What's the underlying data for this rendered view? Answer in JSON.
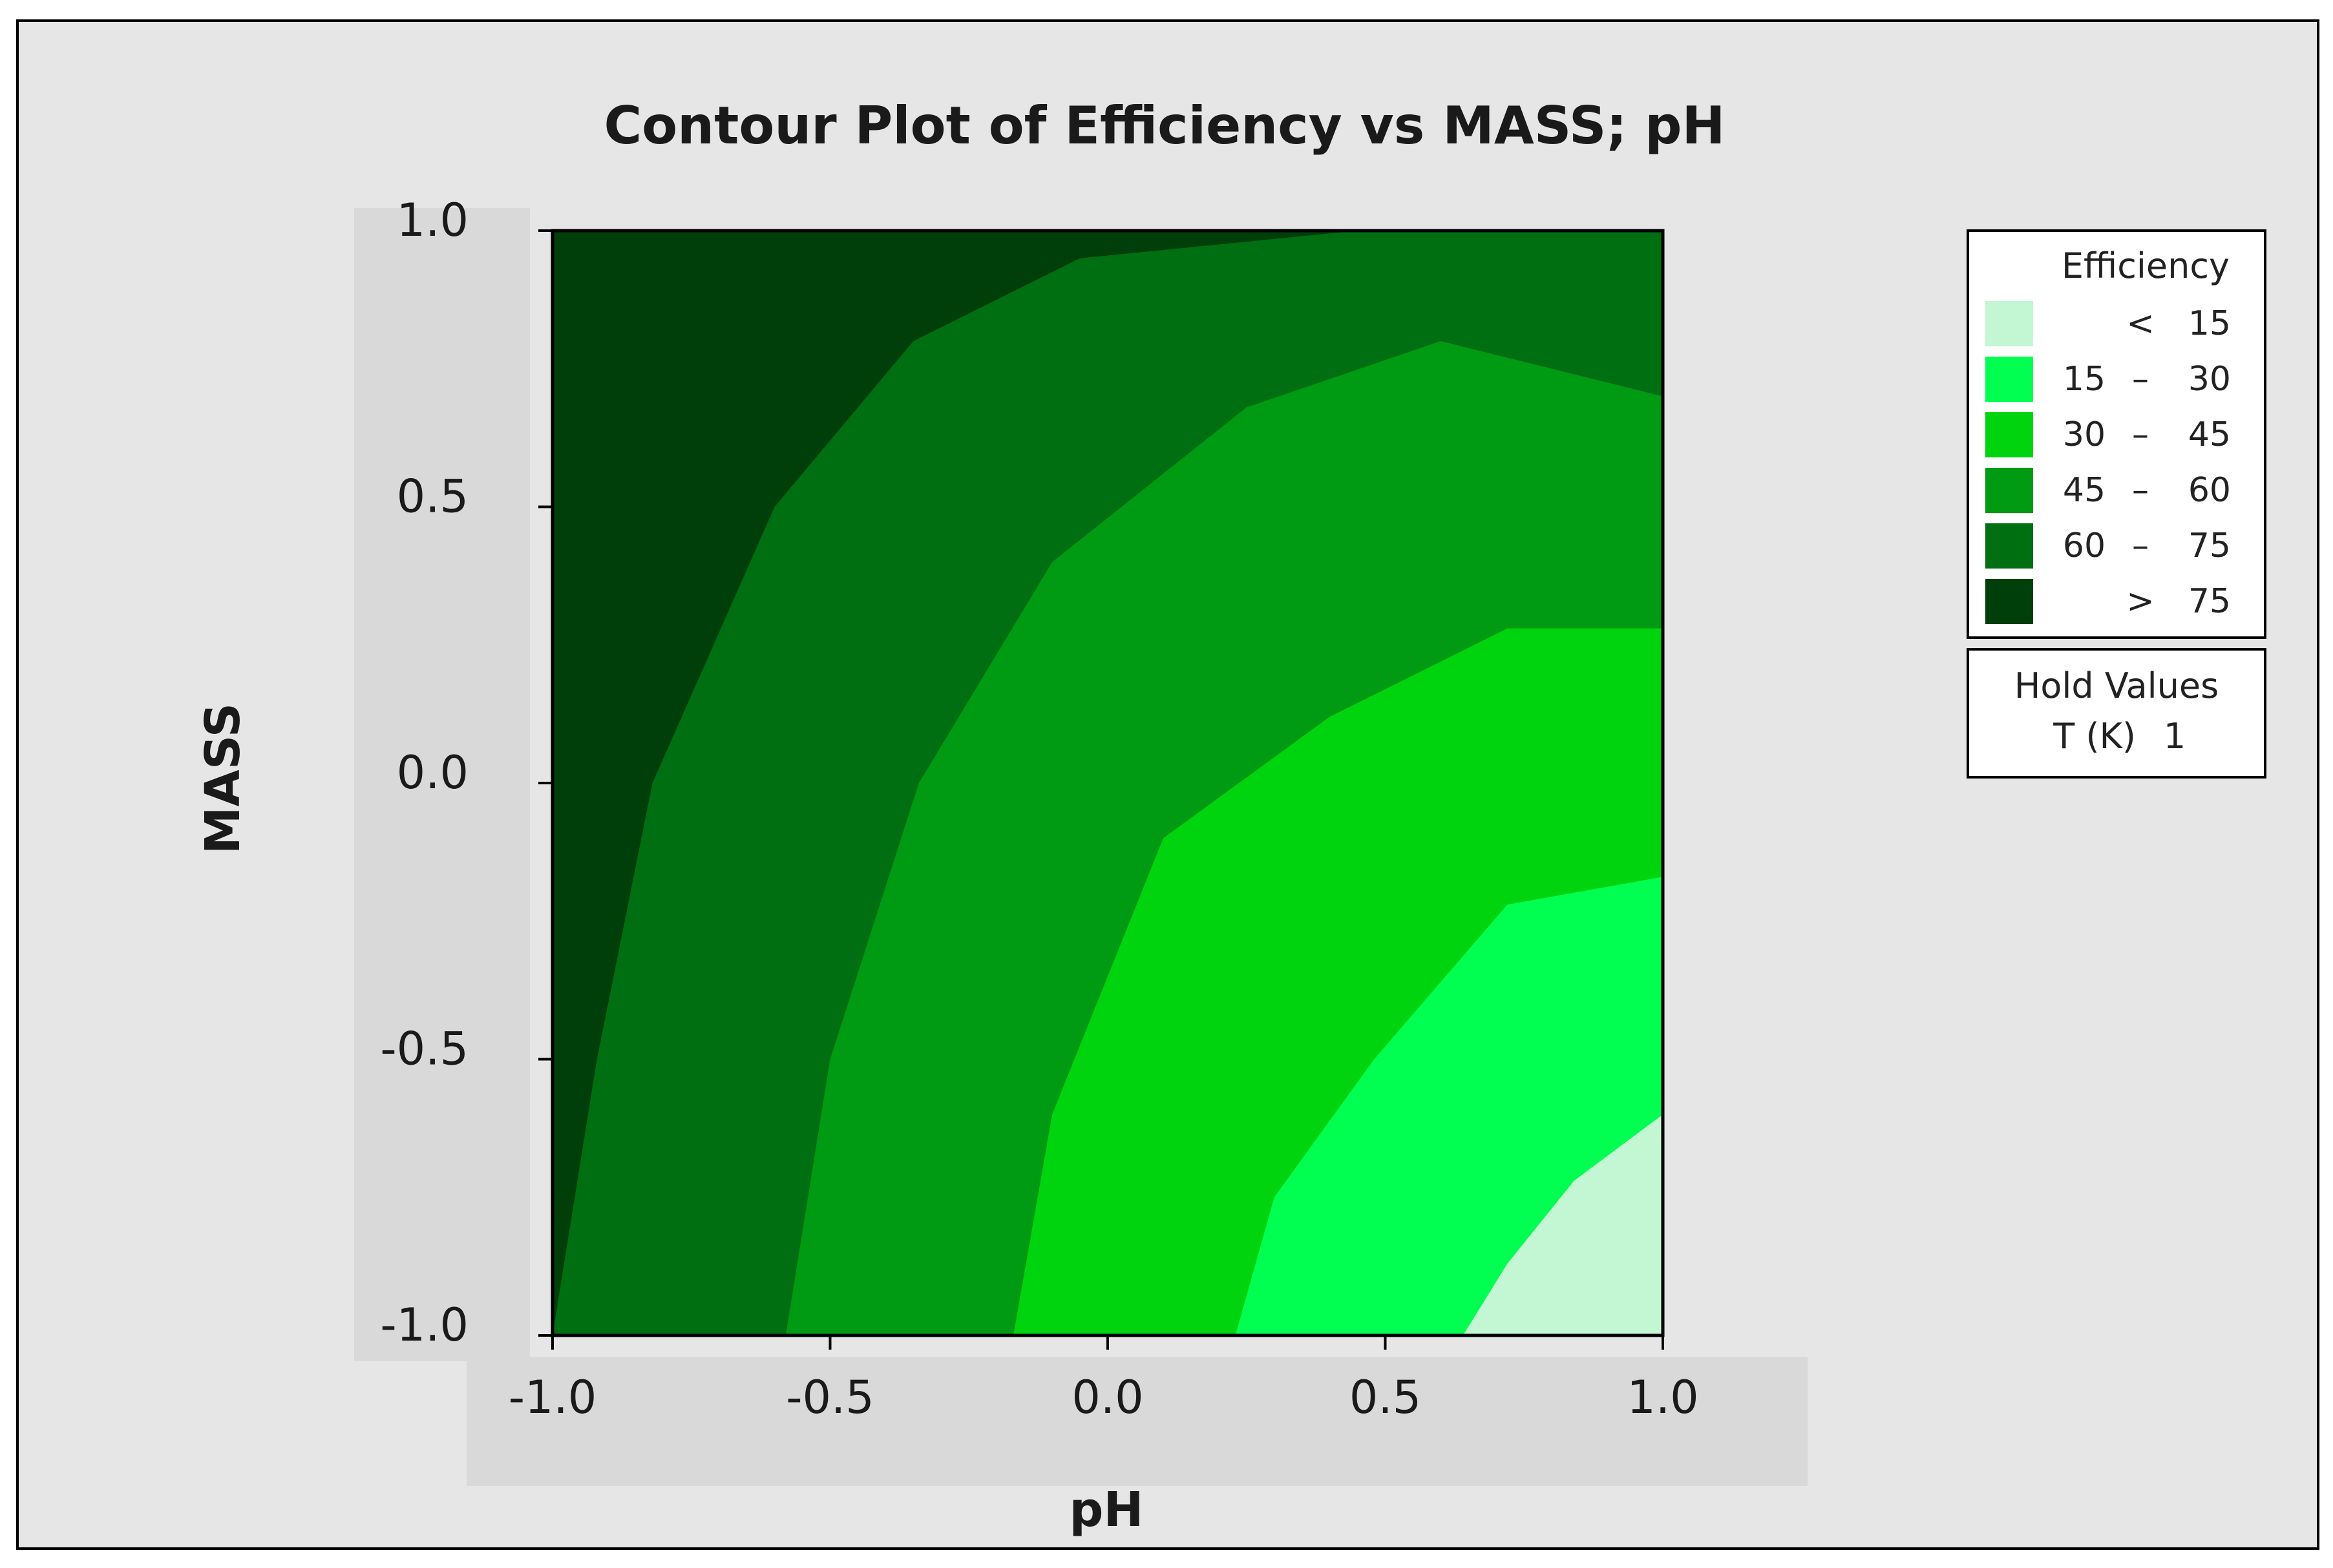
{
  "chart_data": {
    "type": "heatmap",
    "subtype": "filled-contour",
    "title": "Contour Plot of Efficiency vs MASS; pH",
    "xlabel": "pH",
    "ylabel": "MASS",
    "xlim": [
      -1.0,
      1.0
    ],
    "ylim": [
      -1.0,
      1.0
    ],
    "xticks": [
      -1.0,
      -0.5,
      0.0,
      0.5,
      1.0
    ],
    "xtick_labels": [
      "-1.0",
      "-0.5",
      "0.0",
      "0.5",
      "1.0"
    ],
    "yticks": [
      -1.0,
      -0.5,
      0.0,
      0.5,
      1.0
    ],
    "ytick_labels": [
      "-1.0",
      "-0.5",
      "0.0",
      "0.5",
      "1.0"
    ],
    "grid": false,
    "legend": {
      "title": "Efficiency",
      "placement": "right",
      "entries": [
        {
          "lo": "",
          "sep": "<",
          "hi": "15",
          "color": "#c3f7d4"
        },
        {
          "lo": "15",
          "sep": "–",
          "hi": "30",
          "color": "#00ff50"
        },
        {
          "lo": "30",
          "sep": "–",
          "hi": "45",
          "color": "#00d40f"
        },
        {
          "lo": "45",
          "sep": "–",
          "hi": "60",
          "color": "#009a13"
        },
        {
          "lo": "60",
          "sep": "–",
          "hi": "75",
          "color": "#006f12"
        },
        {
          "lo": "",
          "sep": ">",
          "hi": "75",
          "color": "#003f0a"
        }
      ]
    },
    "hold_values": {
      "title": "Hold Values",
      "items": [
        {
          "name": "T (K)",
          "value": "1"
        }
      ]
    },
    "contour_levels": [
      15,
      30,
      45,
      60,
      75
    ],
    "contour_boundaries": [
      {
        "level": 75,
        "points": [
          [
            -1.0,
            -1.0
          ],
          [
            -0.92,
            -0.5
          ],
          [
            -0.82,
            0.0
          ],
          [
            -0.6,
            0.5
          ],
          [
            -0.35,
            0.8
          ],
          [
            -0.05,
            0.95
          ],
          [
            0.45,
            1.0
          ]
        ]
      },
      {
        "level": 60,
        "points": [
          [
            -0.58,
            -1.0
          ],
          [
            -0.5,
            -0.5
          ],
          [
            -0.34,
            0.0
          ],
          [
            -0.1,
            0.4
          ],
          [
            0.25,
            0.68
          ],
          [
            0.6,
            0.8
          ],
          [
            1.0,
            0.7
          ]
        ]
      },
      {
        "level": 45,
        "points": [
          [
            -0.17,
            -1.0
          ],
          [
            -0.1,
            -0.6
          ],
          [
            0.1,
            -0.1
          ],
          [
            0.4,
            0.12
          ],
          [
            0.72,
            0.28
          ],
          [
            1.0,
            0.28
          ]
        ]
      },
      {
        "level": 30,
        "points": [
          [
            0.23,
            -1.0
          ],
          [
            0.3,
            -0.75
          ],
          [
            0.48,
            -0.5
          ],
          [
            0.72,
            -0.22
          ],
          [
            1.0,
            -0.17
          ]
        ]
      },
      {
        "level": 15,
        "points": [
          [
            0.64,
            -1.0
          ],
          [
            0.72,
            -0.87
          ],
          [
            0.84,
            -0.72
          ],
          [
            1.0,
            -0.6
          ]
        ]
      }
    ]
  },
  "colors": {
    "outer_background": "#e6e6e6",
    "frame": "#000000",
    "tick_band": "#d9d9d9"
  }
}
